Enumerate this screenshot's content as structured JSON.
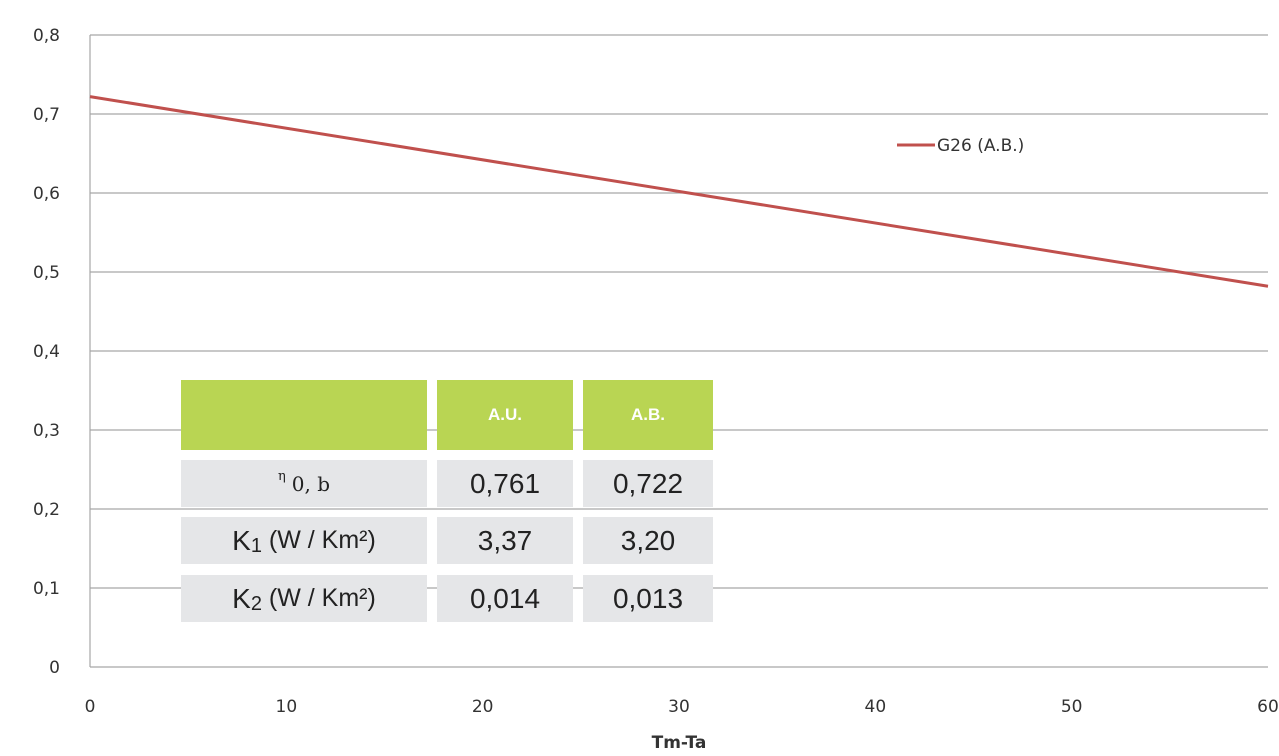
{
  "chart_data": {
    "type": "line",
    "xlabel": "Tm-Ta",
    "ylabel": "",
    "xlim": [
      0,
      60
    ],
    "ylim": [
      0,
      0.8
    ],
    "x_ticks": [
      "0",
      "10",
      "20",
      "30",
      "40",
      "50",
      "60"
    ],
    "y_ticks": [
      "0",
      "0,1",
      "0,2",
      "0,3",
      "0,4",
      "0,5",
      "0,6",
      "0,7",
      "0,8"
    ],
    "grid": "horizontal",
    "legend_position": "top-right",
    "line_color": "#c0504d",
    "series": [
      {
        "name": "G26 (A.B.)",
        "x": [
          0,
          60
        ],
        "y": [
          0.722,
          0.482
        ]
      }
    ]
  },
  "table": {
    "header_color": "#b9d553",
    "cell_color": "#e5e6e8",
    "columns": [
      "",
      "A.U.",
      "A.B."
    ],
    "rows": [
      {
        "label_main": "η",
        "label_sub": "0, b",
        "au": "0,761",
        "ab": "0,722"
      },
      {
        "label_main": "K",
        "label_sub": "1",
        "label_unit": " (W / Km²)",
        "au": "3,37",
        "ab": "3,20"
      },
      {
        "label_main": "K",
        "label_sub": "2",
        "label_unit": " (W / Km²)",
        "au": "0,014",
        "ab": "0,013"
      }
    ]
  }
}
